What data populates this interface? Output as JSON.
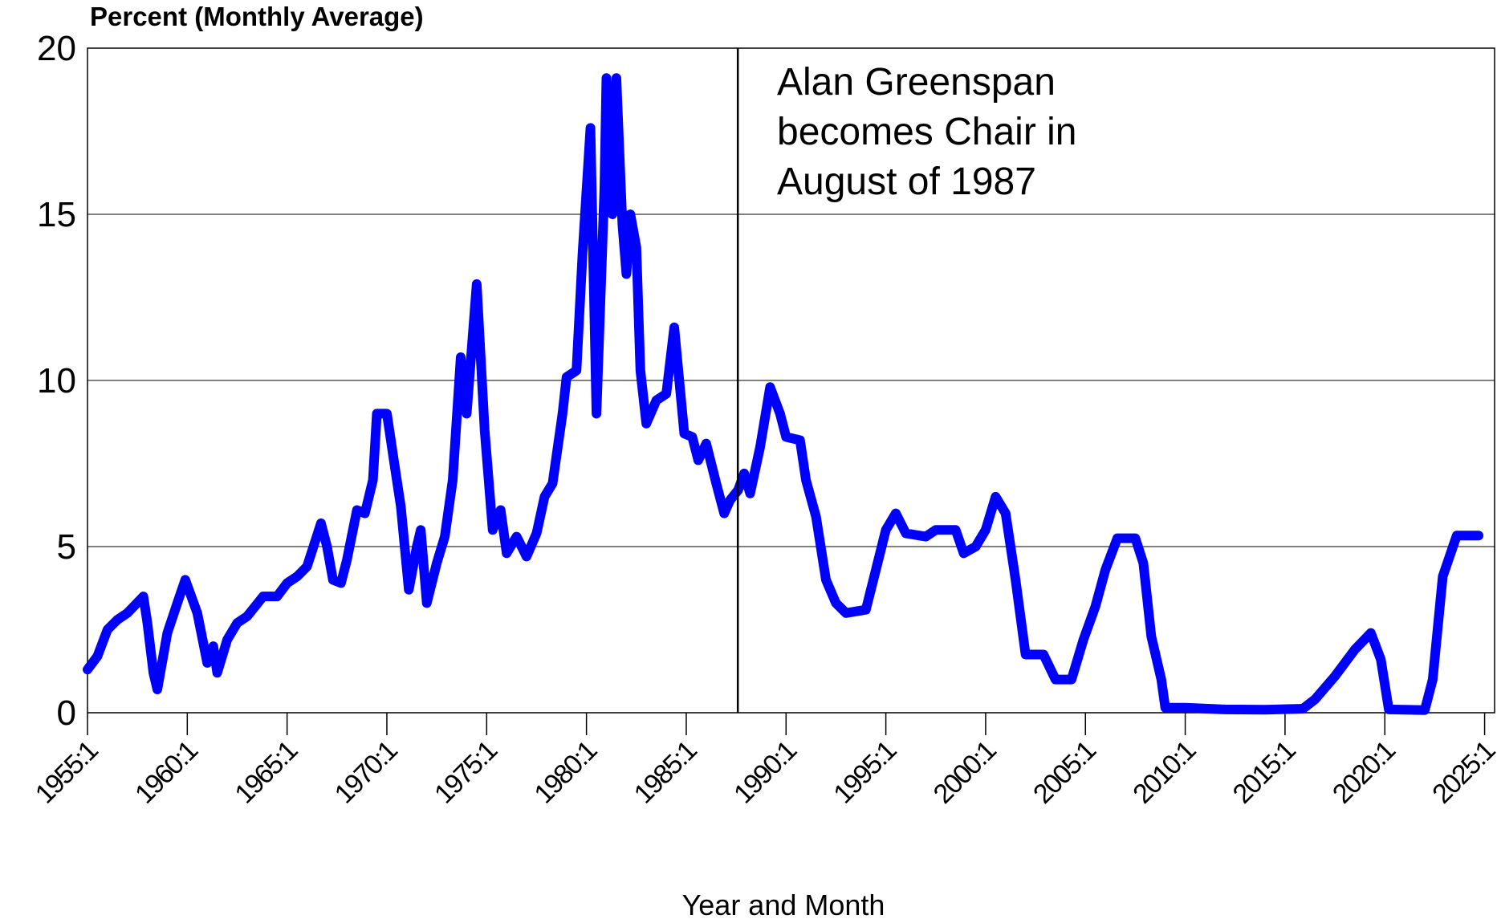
{
  "chart_data": {
    "type": "line",
    "y_axis_title": "Percent (Monthly Average)",
    "x_axis_title": "Year and Month",
    "annotation": [
      "Alan Greenspan",
      "becomes Chair in",
      "August of 1987"
    ],
    "vline": 1987.583,
    "xlim": [
      1955,
      2025.5
    ],
    "ylim": [
      0,
      20
    ],
    "yticks": [
      0,
      5,
      10,
      15,
      20
    ],
    "xticks": [
      {
        "value": 1955,
        "label": "1955:1"
      },
      {
        "value": 1960,
        "label": "1960:1"
      },
      {
        "value": 1965,
        "label": "1965:1"
      },
      {
        "value": 1970,
        "label": "1970:1"
      },
      {
        "value": 1975,
        "label": "1975:1"
      },
      {
        "value": 1980,
        "label": "1980:1"
      },
      {
        "value": 1985,
        "label": "1985:1"
      },
      {
        "value": 1990,
        "label": "1990:1"
      },
      {
        "value": 1995,
        "label": "1995:1"
      },
      {
        "value": 2000,
        "label": "2000:1"
      },
      {
        "value": 2005,
        "label": "2005:1"
      },
      {
        "value": 2010,
        "label": "2010:1"
      },
      {
        "value": 2015,
        "label": "2015:1"
      },
      {
        "value": 2020,
        "label": "2020:1"
      },
      {
        "value": 2025,
        "label": "2025:1"
      }
    ],
    "grid": true,
    "series": [
      {
        "color": "#0000ff",
        "x": [
          1955.0,
          1955.5,
          1956.0,
          1956.5,
          1957.0,
          1957.8,
          1958.0,
          1958.3,
          1958.5,
          1959.0,
          1959.5,
          1959.9,
          1960.5,
          1961.0,
          1961.3,
          1961.5,
          1962.0,
          1962.5,
          1963.0,
          1963.8,
          1964.5,
          1965.0,
          1965.5,
          1966.0,
          1966.7,
          1967.0,
          1967.3,
          1967.7,
          1968.0,
          1968.5,
          1968.9,
          1969.3,
          1969.5,
          1969.8,
          1970.0,
          1970.3,
          1970.7,
          1971.1,
          1971.5,
          1971.7,
          1972.0,
          1972.5,
          1972.9,
          1973.3,
          1973.7,
          1974.0,
          1974.5,
          1974.9,
          1975.3,
          1975.7,
          1976.0,
          1976.5,
          1977.0,
          1977.5,
          1977.9,
          1978.3,
          1978.8,
          1979.0,
          1979.5,
          1979.8,
          1980.2,
          1980.5,
          1980.9,
          1981.0,
          1981.3,
          1981.5,
          1981.8,
          1982.0,
          1982.2,
          1982.5,
          1982.7,
          1983.0,
          1983.5,
          1984.0,
          1984.4,
          1984.9,
          1985.3,
          1985.6,
          1986.0,
          1986.5,
          1986.9,
          1987.2,
          1987.6,
          1987.9,
          1988.2,
          1988.7,
          1989.2,
          1989.7,
          1990.0,
          1990.7,
          1991.0,
          1991.5,
          1992.0,
          1992.5,
          1993.0,
          1994.0,
          1994.5,
          1995.0,
          1995.5,
          1996.0,
          1997.0,
          1997.5,
          1998.5,
          1998.9,
          1999.5,
          2000.0,
          2000.5,
          2001.0,
          2001.5,
          2002.0,
          2002.9,
          2003.5,
          2004.3,
          2004.9,
          2005.5,
          2006.0,
          2006.6,
          2007.5,
          2007.9,
          2008.3,
          2008.8,
          2009.0,
          2010.0,
          2012.0,
          2014.0,
          2015.9,
          2016.5,
          2017.5,
          2018.5,
          2019.3,
          2019.8,
          2020.2,
          2022.0,
          2022.4,
          2022.9,
          2023.6,
          2024.7
        ],
        "values": [
          1.3,
          1.7,
          2.5,
          2.8,
          3.0,
          3.5,
          2.7,
          1.2,
          0.7,
          2.4,
          3.3,
          4.0,
          3.0,
          1.5,
          2.0,
          1.2,
          2.2,
          2.7,
          2.9,
          3.5,
          3.5,
          3.9,
          4.1,
          4.4,
          5.7,
          5.0,
          4.0,
          3.9,
          4.6,
          6.1,
          6.0,
          7.0,
          9.0,
          9.0,
          9.0,
          7.8,
          6.2,
          3.7,
          5.0,
          5.5,
          3.3,
          4.5,
          5.3,
          7.0,
          10.7,
          9.0,
          12.9,
          8.5,
          5.5,
          6.1,
          4.8,
          5.3,
          4.7,
          5.4,
          6.5,
          6.9,
          9.0,
          10.1,
          10.3,
          13.8,
          17.6,
          9.0,
          15.8,
          19.1,
          15.0,
          19.1,
          14.7,
          13.2,
          15.0,
          14.0,
          10.3,
          8.7,
          9.4,
          9.6,
          11.6,
          8.4,
          8.3,
          7.6,
          8.1,
          6.9,
          6.0,
          6.4,
          6.7,
          7.2,
          6.6,
          8.0,
          9.8,
          9.0,
          8.3,
          8.2,
          7.0,
          5.9,
          4.0,
          3.3,
          3.0,
          3.1,
          4.3,
          5.5,
          6.0,
          5.4,
          5.3,
          5.5,
          5.5,
          4.8,
          5.0,
          5.5,
          6.5,
          6.0,
          4.0,
          1.75,
          1.75,
          1.0,
          1.0,
          2.2,
          3.2,
          4.3,
          5.25,
          5.25,
          4.5,
          2.3,
          1.0,
          0.15,
          0.15,
          0.1,
          0.09,
          0.12,
          0.4,
          1.1,
          1.9,
          2.4,
          1.6,
          0.1,
          0.08,
          1.0,
          4.1,
          5.33,
          5.33
        ]
      }
    ]
  }
}
